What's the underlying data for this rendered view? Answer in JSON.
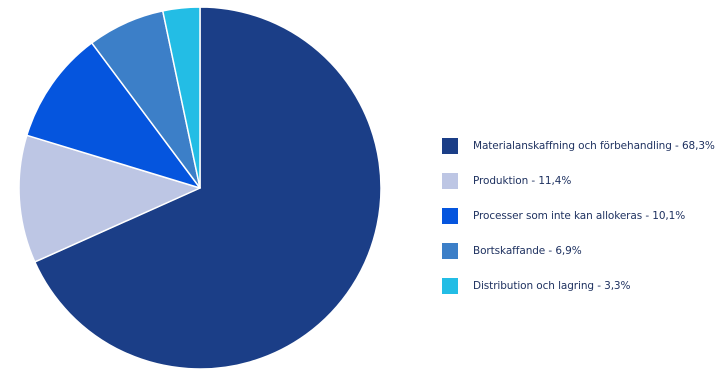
{
  "chart_data": {
    "type": "pie",
    "title": "",
    "legend_position": "right",
    "slices": [
      {
        "label": "Materialanskaffning och förbehandling - 68,3%",
        "value": 68.3,
        "color": "#1b3e87"
      },
      {
        "label": "Produktion - 11,4%",
        "value": 11.4,
        "color": "#bdc6e4"
      },
      {
        "label": "Processer som inte kan allokeras - 10,1%",
        "value": 10.1,
        "color": "#0555de"
      },
      {
        "label": "Bortskaffande - 6,9%",
        "value": 6.9,
        "color": "#3c7fc8"
      },
      {
        "label": "Distribution och lagring - 3,3%",
        "value": 3.3,
        "color": "#23bde5"
      }
    ]
  }
}
